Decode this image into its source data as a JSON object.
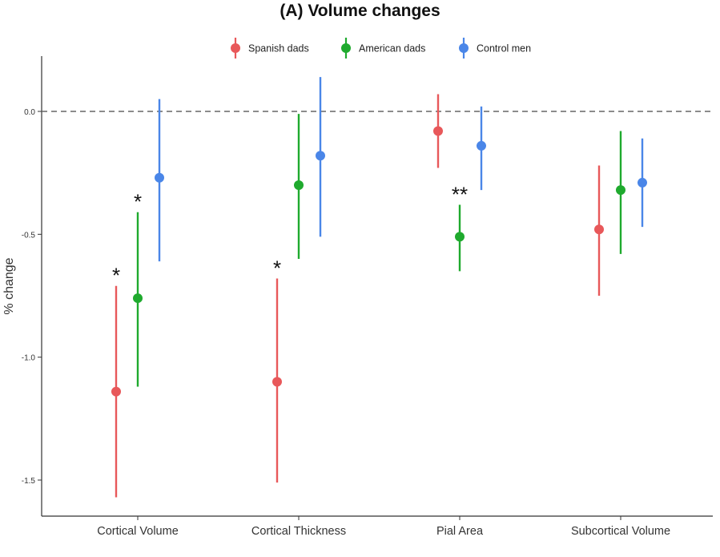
{
  "chart_data": {
    "type": "scatter",
    "title": "(A) Volume changes",
    "xlabel": "",
    "ylabel": "% change",
    "ylim": [
      -1.6,
      0.22
    ],
    "yticks": [
      "0.0",
      "-0.5",
      "-1.0",
      "-1.5"
    ],
    "ytick_values": [
      0.0,
      -0.5,
      -1.0,
      -1.5
    ],
    "reference_line": 0.0,
    "grid": false,
    "legend_position": "top",
    "categories": [
      "Cortical Volume",
      "Cortical Thickness",
      "Pial Area",
      "Subcortical Volume"
    ],
    "series": [
      {
        "name": "Spanish dads",
        "color": "#E8585A",
        "values": [
          -1.14,
          -1.1,
          -0.08,
          -0.48
        ],
        "lower": [
          -1.57,
          -1.51,
          -0.23,
          -0.75
        ],
        "upper": [
          -0.71,
          -0.68,
          0.07,
          -0.22
        ],
        "significance": [
          "*",
          "*",
          "",
          ""
        ]
      },
      {
        "name": "American dads",
        "color": "#1FAA2E",
        "values": [
          -0.76,
          -0.3,
          -0.51,
          -0.32
        ],
        "lower": [
          -1.12,
          -0.6,
          -0.65,
          -0.58
        ],
        "upper": [
          -0.41,
          -0.01,
          -0.38,
          -0.08
        ],
        "significance": [
          "*",
          "",
          "**",
          ""
        ]
      },
      {
        "name": "Control men",
        "color": "#4A86E8",
        "values": [
          -0.27,
          -0.18,
          -0.14,
          -0.29
        ],
        "lower": [
          -0.61,
          -0.51,
          -0.32,
          -0.47
        ],
        "upper": [
          0.05,
          0.14,
          0.02,
          -0.11
        ],
        "significance": [
          "",
          "",
          "",
          ""
        ]
      }
    ]
  }
}
